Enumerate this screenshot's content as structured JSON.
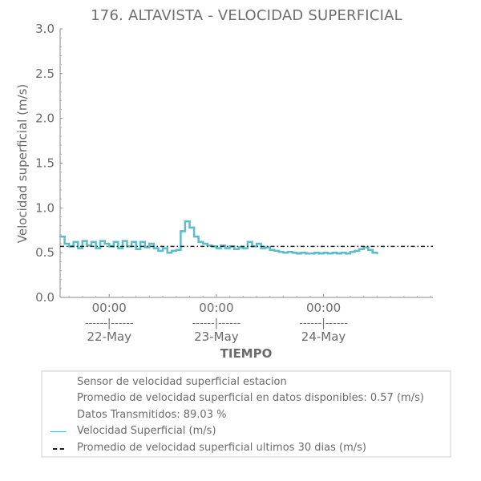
{
  "chart_data": {
    "type": "line",
    "title": "176. ALTAVISTA - VELOCIDAD SUPERFICIAL",
    "xlabel": "TIEMPO",
    "ylabel": "Velocidad superficial (m/s)",
    "ylim": [
      0.0,
      3.0
    ],
    "yticks": [
      "0.0",
      "0.5",
      "1.0",
      "1.5",
      "2.0",
      "2.5",
      "3.0"
    ],
    "x_range": [
      "2022-05-21 13:00",
      "2022-05-25 00:30"
    ],
    "xticks": [
      {
        "x": "2022-05-22 00:00",
        "time": "00:00",
        "sep": "------|------",
        "date": "22-May"
      },
      {
        "x": "2022-05-23 00:00",
        "time": "00:00",
        "sep": "------|------",
        "date": "23-May"
      },
      {
        "x": "2022-05-24 00:00",
        "time": "00:00",
        "sep": "------|------",
        "date": "24-May"
      }
    ],
    "series": [
      {
        "name": "Velocidad Superficial (m/s)",
        "color": "#5bbdc8",
        "style": "solid",
        "x": [
          "2022-05-21 13:00",
          "2022-05-21 14:00",
          "2022-05-21 15:00",
          "2022-05-21 16:00",
          "2022-05-21 17:00",
          "2022-05-21 18:00",
          "2022-05-21 19:00",
          "2022-05-21 20:00",
          "2022-05-21 21:00",
          "2022-05-21 22:00",
          "2022-05-21 23:00",
          "2022-05-22 00:00",
          "2022-05-22 01:00",
          "2022-05-22 02:00",
          "2022-05-22 03:00",
          "2022-05-22 04:00",
          "2022-05-22 05:00",
          "2022-05-22 06:00",
          "2022-05-22 07:00",
          "2022-05-22 08:00",
          "2022-05-22 09:00",
          "2022-05-22 10:00",
          "2022-05-22 11:00",
          "2022-05-22 12:00",
          "2022-05-22 13:00",
          "2022-05-22 14:00",
          "2022-05-22 15:00",
          "2022-05-22 16:00",
          "2022-05-22 17:00",
          "2022-05-22 18:00",
          "2022-05-22 19:00",
          "2022-05-22 20:00",
          "2022-05-22 21:00",
          "2022-05-22 22:00",
          "2022-05-22 23:00",
          "2022-05-23 00:00",
          "2022-05-23 01:00",
          "2022-05-23 02:00",
          "2022-05-23 03:00",
          "2022-05-23 04:00",
          "2022-05-23 05:00",
          "2022-05-23 06:00",
          "2022-05-23 07:00",
          "2022-05-23 08:00",
          "2022-05-23 09:00",
          "2022-05-23 10:00",
          "2022-05-23 11:00",
          "2022-05-23 12:00",
          "2022-05-23 13:00",
          "2022-05-23 14:00",
          "2022-05-23 15:00",
          "2022-05-23 16:00",
          "2022-05-23 17:00",
          "2022-05-23 18:00",
          "2022-05-23 19:00",
          "2022-05-23 20:00",
          "2022-05-23 21:00",
          "2022-05-23 22:00",
          "2022-05-23 23:00",
          "2022-05-24 00:00",
          "2022-05-24 01:00",
          "2022-05-24 02:00",
          "2022-05-24 03:00",
          "2022-05-24 04:00",
          "2022-05-24 05:00",
          "2022-05-24 06:00",
          "2022-05-24 07:00",
          "2022-05-24 08:00",
          "2022-05-24 09:00",
          "2022-05-24 10:00",
          "2022-05-24 11:00",
          "2022-05-24 12:00"
        ],
        "y": [
          0.68,
          0.6,
          0.57,
          0.62,
          0.55,
          0.63,
          0.58,
          0.62,
          0.55,
          0.63,
          0.6,
          0.57,
          0.62,
          0.55,
          0.63,
          0.57,
          0.62,
          0.54,
          0.62,
          0.56,
          0.6,
          0.55,
          0.52,
          0.55,
          0.5,
          0.52,
          0.53,
          0.74,
          0.85,
          0.78,
          0.68,
          0.62,
          0.6,
          0.58,
          0.57,
          0.55,
          0.58,
          0.55,
          0.57,
          0.54,
          0.56,
          0.55,
          0.62,
          0.57,
          0.6,
          0.55,
          0.56,
          0.53,
          0.52,
          0.51,
          0.5,
          0.51,
          0.5,
          0.49,
          0.5,
          0.49,
          0.49,
          0.5,
          0.49,
          0.5,
          0.49,
          0.5,
          0.49,
          0.5,
          0.49,
          0.51,
          0.52,
          0.54,
          0.56,
          0.53,
          0.5,
          0.49
        ]
      },
      {
        "name": "Promedio de velocidad superficial ultimos 30 dias (m/s)",
        "color": "#222222",
        "style": "dashdot",
        "x": [
          "2022-05-21 13:00",
          "2022-05-25 00:30"
        ],
        "y": [
          0.57,
          0.57
        ]
      }
    ],
    "legend": {
      "placement": "bottom",
      "entries": [
        {
          "text": "Sensor de velocidad superficial estacion",
          "marker": "none"
        },
        {
          "text": "Promedio de velocidad superficial en datos disponibles: 0.57 (m/s)",
          "marker": "none"
        },
        {
          "text": "Datos Transmitidos: 89.03 %",
          "marker": "none"
        },
        {
          "text": "Velocidad Superficial (m/s)",
          "marker": "line"
        },
        {
          "text": "Promedio de velocidad superficial ultimos 30 dias (m/s)",
          "marker": "dashdot"
        }
      ]
    },
    "grid": false
  }
}
